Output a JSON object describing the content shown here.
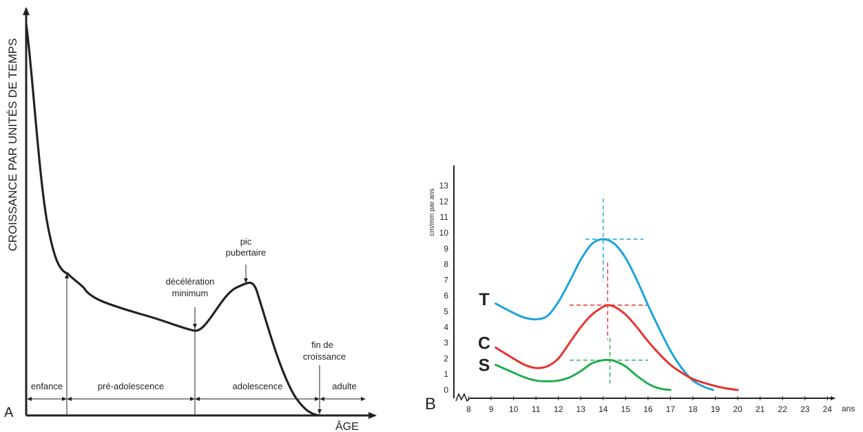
{
  "chart_data": [
    {
      "panel": "A",
      "type": "line",
      "ylabel": "CROISSANCE PAR UNITÉS DE TEMPS",
      "xlabel": "ÂGE",
      "annotations": [
        {
          "lines": [
            "décélération",
            "minimum"
          ]
        },
        {
          "lines": [
            "pic",
            "pubertaire"
          ]
        },
        {
          "lines": [
            "fin de",
            "croissance"
          ]
        }
      ],
      "phases": [
        "enfance",
        "pré-adolescence",
        "adolescence",
        "adulte"
      ]
    },
    {
      "panel": "B",
      "type": "line",
      "ylabel": "cm/mm par ans",
      "xlabel": "ans",
      "x_ticks": [
        8,
        9,
        10,
        11,
        12,
        13,
        14,
        15,
        16,
        17,
        18,
        19,
        20,
        21,
        22,
        23,
        24
      ],
      "y_ticks": [
        0,
        1,
        2,
        3,
        4,
        5,
        6,
        7,
        8,
        9,
        10,
        11,
        12,
        13
      ],
      "xlim": [
        8,
        24
      ],
      "ylim": [
        0,
        13
      ],
      "grid": false,
      "series": [
        {
          "name": "T",
          "color": "#1aa3dc",
          "x": [
            9.2,
            10,
            10.5,
            11,
            11.5,
            12,
            12.5,
            13,
            13.5,
            14,
            14.5,
            15,
            15.5,
            16,
            16.5,
            17,
            17.5,
            18,
            18.5,
            18.9
          ],
          "y": [
            5.5,
            4.9,
            4.6,
            4.5,
            4.7,
            5.6,
            6.9,
            8.3,
            9.3,
            9.6,
            9.3,
            8.4,
            7.0,
            5.4,
            3.9,
            2.5,
            1.4,
            0.6,
            0.2,
            0.0
          ]
        },
        {
          "name": "C",
          "color": "#e8312f",
          "x": [
            9.2,
            10,
            10.5,
            11,
            11.5,
            12,
            12.5,
            13,
            13.5,
            14,
            14.2,
            14.5,
            15,
            15.5,
            16,
            16.5,
            17,
            17.5,
            18,
            18.5,
            19,
            19.5,
            20
          ],
          "y": [
            2.7,
            2.0,
            1.6,
            1.4,
            1.5,
            2.0,
            3.0,
            4.0,
            4.8,
            5.3,
            5.4,
            5.3,
            4.8,
            4.0,
            3.1,
            2.3,
            1.6,
            1.1,
            0.7,
            0.45,
            0.25,
            0.1,
            0.0
          ]
        },
        {
          "name": "S",
          "color": "#1fae4b",
          "x": [
            9.2,
            10,
            10.5,
            11,
            11.5,
            12,
            12.5,
            13,
            13.5,
            14,
            14.3,
            14.5,
            15,
            15.5,
            16,
            16.5,
            17
          ],
          "y": [
            1.6,
            1.1,
            0.8,
            0.6,
            0.55,
            0.6,
            0.8,
            1.2,
            1.7,
            1.9,
            1.9,
            1.85,
            1.5,
            0.9,
            0.4,
            0.1,
            0.0
          ]
        }
      ],
      "peaks": [
        {
          "series": "T",
          "x": 14.0,
          "y": 9.6
        },
        {
          "series": "C",
          "x": 14.2,
          "y": 5.4
        },
        {
          "series": "S",
          "x": 14.3,
          "y": 1.9
        }
      ]
    }
  ],
  "panel_labels": {
    "a": "A",
    "b": "B"
  }
}
